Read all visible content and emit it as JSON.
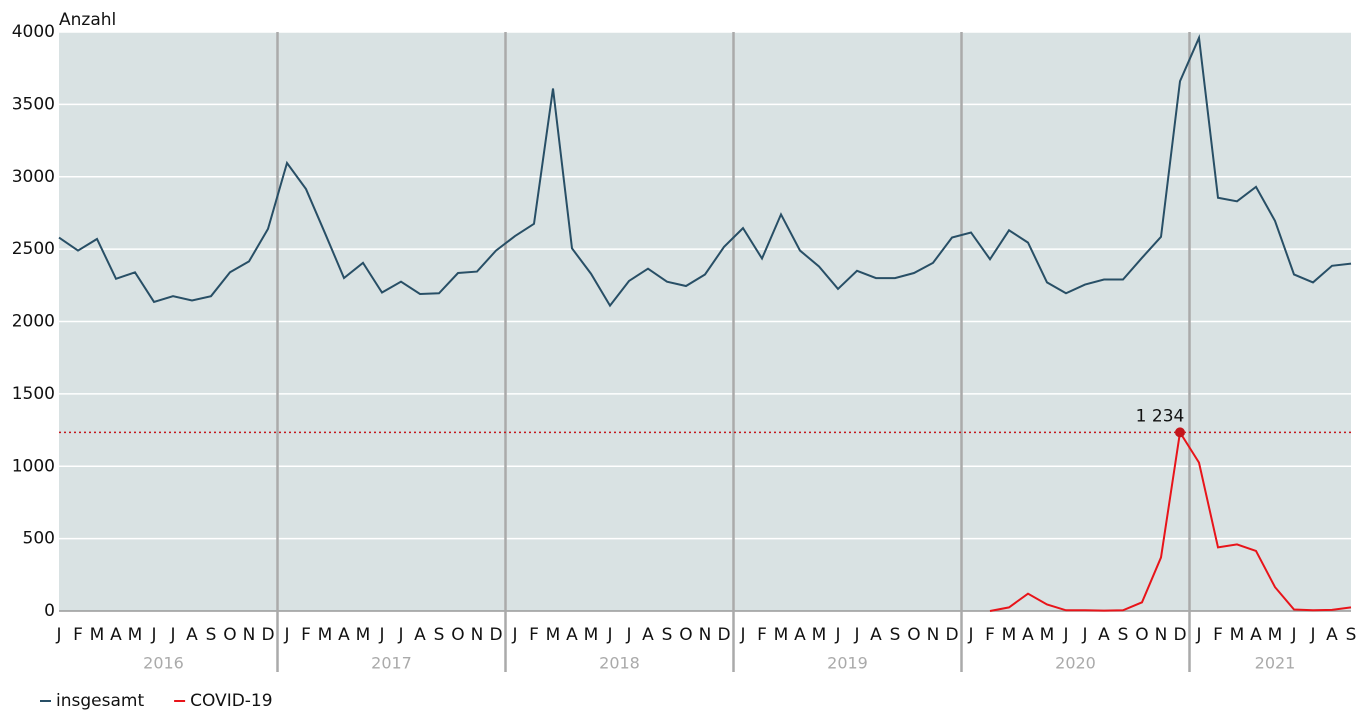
{
  "chart_data": {
    "type": "line",
    "y_axis_label": "Anzahl",
    "categories": [
      "J",
      "F",
      "M",
      "A",
      "M",
      "J",
      "J",
      "A",
      "S",
      "O",
      "N",
      "D",
      "J",
      "F",
      "M",
      "A",
      "M",
      "J",
      "J",
      "A",
      "S",
      "O",
      "N",
      "D",
      "J",
      "F",
      "M",
      "A",
      "M",
      "J",
      "J",
      "A",
      "S",
      "O",
      "N",
      "D",
      "J",
      "F",
      "M",
      "A",
      "M",
      "J",
      "J",
      "A",
      "S",
      "O",
      "N",
      "D",
      "J",
      "F",
      "M",
      "A",
      "M",
      "J",
      "J",
      "A",
      "S",
      "O",
      "N",
      "D",
      "J",
      "F",
      "M",
      "A",
      "M",
      "J",
      "J",
      "A",
      "S"
    ],
    "years": [
      "2016",
      "2017",
      "2018",
      "2019",
      "2020",
      "2021"
    ],
    "series": [
      {
        "name": "insgesamt",
        "color": "#284f66",
        "values": [
          2580,
          2490,
          2570,
          2295,
          2340,
          2135,
          2175,
          2145,
          2175,
          2340,
          2415,
          2640,
          3095,
          2915,
          2610,
          2300,
          2405,
          2200,
          2275,
          2190,
          2195,
          2335,
          2345,
          2490,
          2590,
          2675,
          3610,
          2505,
          2330,
          2110,
          2280,
          2365,
          2275,
          2245,
          2325,
          2515,
          2645,
          2435,
          2740,
          2490,
          2380,
          2225,
          2350,
          2300,
          2300,
          2335,
          2405,
          2580,
          2615,
          2430,
          2630,
          2545,
          2270,
          2195,
          2255,
          2290,
          2290,
          2440,
          2585,
          3660,
          3960,
          2855,
          2830,
          2930,
          2695,
          2325,
          2270,
          2385,
          2400
        ]
      },
      {
        "name": "COVID-19",
        "color": "#e8141a",
        "values": [
          null,
          null,
          null,
          null,
          null,
          null,
          null,
          null,
          null,
          null,
          null,
          null,
          null,
          null,
          null,
          null,
          null,
          null,
          null,
          null,
          null,
          null,
          null,
          null,
          null,
          null,
          null,
          null,
          null,
          null,
          null,
          null,
          null,
          null,
          null,
          null,
          null,
          null,
          null,
          null,
          null,
          null,
          null,
          null,
          null,
          null,
          null,
          null,
          null,
          0,
          25,
          120,
          45,
          5,
          5,
          3,
          5,
          60,
          370,
          1234,
          1025,
          440,
          460,
          415,
          165,
          10,
          5,
          8,
          25
        ]
      }
    ],
    "annotation": {
      "label": "1 234",
      "value": 1234,
      "series": 1,
      "color": "#c4161c"
    },
    "ylim": [
      0,
      4000
    ],
    "yticks": [
      0,
      500,
      1000,
      1500,
      2000,
      2500,
      3000,
      3500,
      4000
    ],
    "grid": true
  }
}
